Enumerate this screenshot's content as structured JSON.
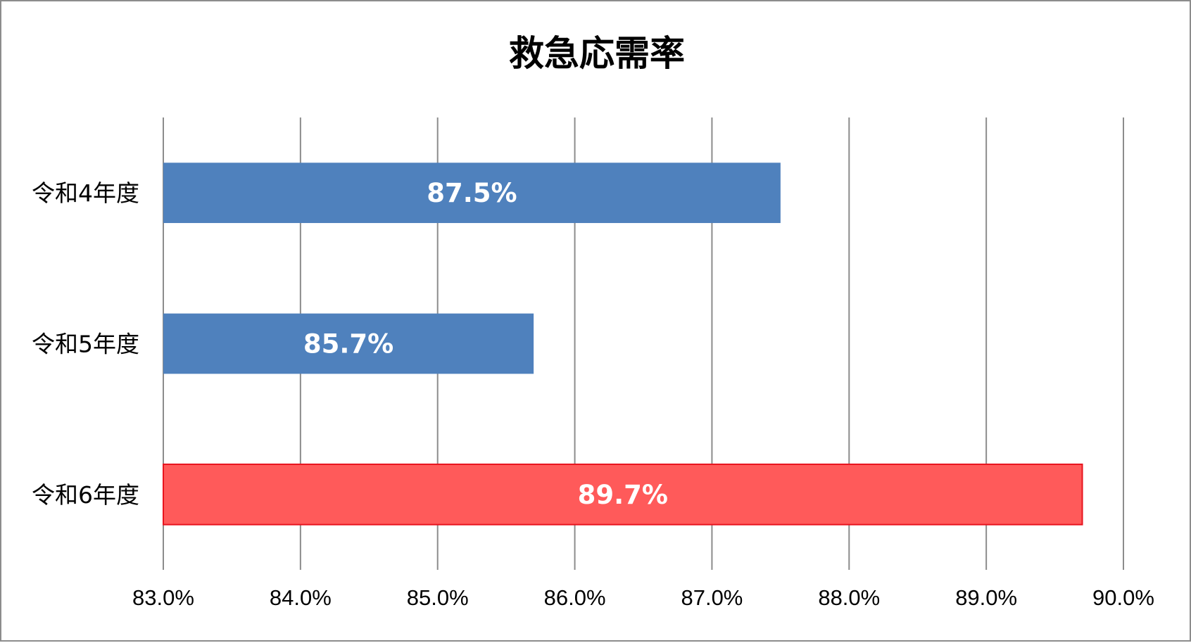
{
  "chart_data": {
    "type": "bar",
    "orientation": "horizontal",
    "title": "救急応需率",
    "categories": [
      "令和4年度",
      "令和5年度",
      "令和6年度"
    ],
    "values": [
      87.5,
      85.7,
      89.7
    ],
    "data_labels": [
      "87.5%",
      "85.7%",
      "89.7%"
    ],
    "bar_colors": [
      "#4f81bd",
      "#4f81bd",
      "#ff5a5a"
    ],
    "highlight_border_color": "#e8141e",
    "xlim": [
      83.0,
      90.0
    ],
    "x_ticks": [
      83.0,
      84.0,
      85.0,
      86.0,
      87.0,
      88.0,
      89.0,
      90.0
    ],
    "x_tick_labels": [
      "83.0%",
      "84.0%",
      "85.0%",
      "86.0%",
      "87.0%",
      "88.0%",
      "89.0%",
      "90.0%"
    ],
    "xlabel": "",
    "ylabel": "",
    "grid": "vertical",
    "legend": "none"
  }
}
